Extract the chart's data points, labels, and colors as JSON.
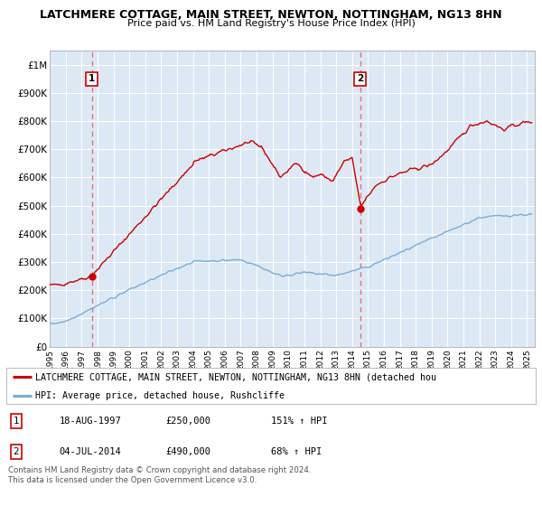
{
  "title": "LATCHMERE COTTAGE, MAIN STREET, NEWTON, NOTTINGHAM, NG13 8HN",
  "subtitle": "Price paid vs. HM Land Registry's House Price Index (HPI)",
  "bg_color": "#dce9f5",
  "fig_bg_color": "#ffffff",
  "red_line_color": "#cc0000",
  "blue_line_color": "#7aadd4",
  "sale1_date_x": 1997.63,
  "sale1_price": 250000,
  "sale1_label": "18-AUG-1997",
  "sale1_amount": "£250,000",
  "sale1_hpi": "151% ↑ HPI",
  "sale2_date_x": 2014.5,
  "sale2_price": 490000,
  "sale2_label": "04-JUL-2014",
  "sale2_amount": "£490,000",
  "sale2_hpi": "68% ↑ HPI",
  "xmin": 1995.0,
  "xmax": 2025.5,
  "ymin": 0,
  "ymax": 1050000,
  "yticks": [
    0,
    100000,
    200000,
    300000,
    400000,
    500000,
    600000,
    700000,
    800000,
    900000,
    1000000
  ],
  "ytick_labels": [
    "£0",
    "£100K",
    "£200K",
    "£300K",
    "£400K",
    "£500K",
    "£600K",
    "£700K",
    "£800K",
    "£900K",
    "£1M"
  ],
  "legend_label_red": "LATCHMERE COTTAGE, MAIN STREET, NEWTON, NOTTINGHAM, NG13 8HN (detached hou",
  "legend_label_blue": "HPI: Average price, detached house, Rushcliffe",
  "footnote": "Contains HM Land Registry data © Crown copyright and database right 2024.\nThis data is licensed under the Open Government Licence v3.0."
}
